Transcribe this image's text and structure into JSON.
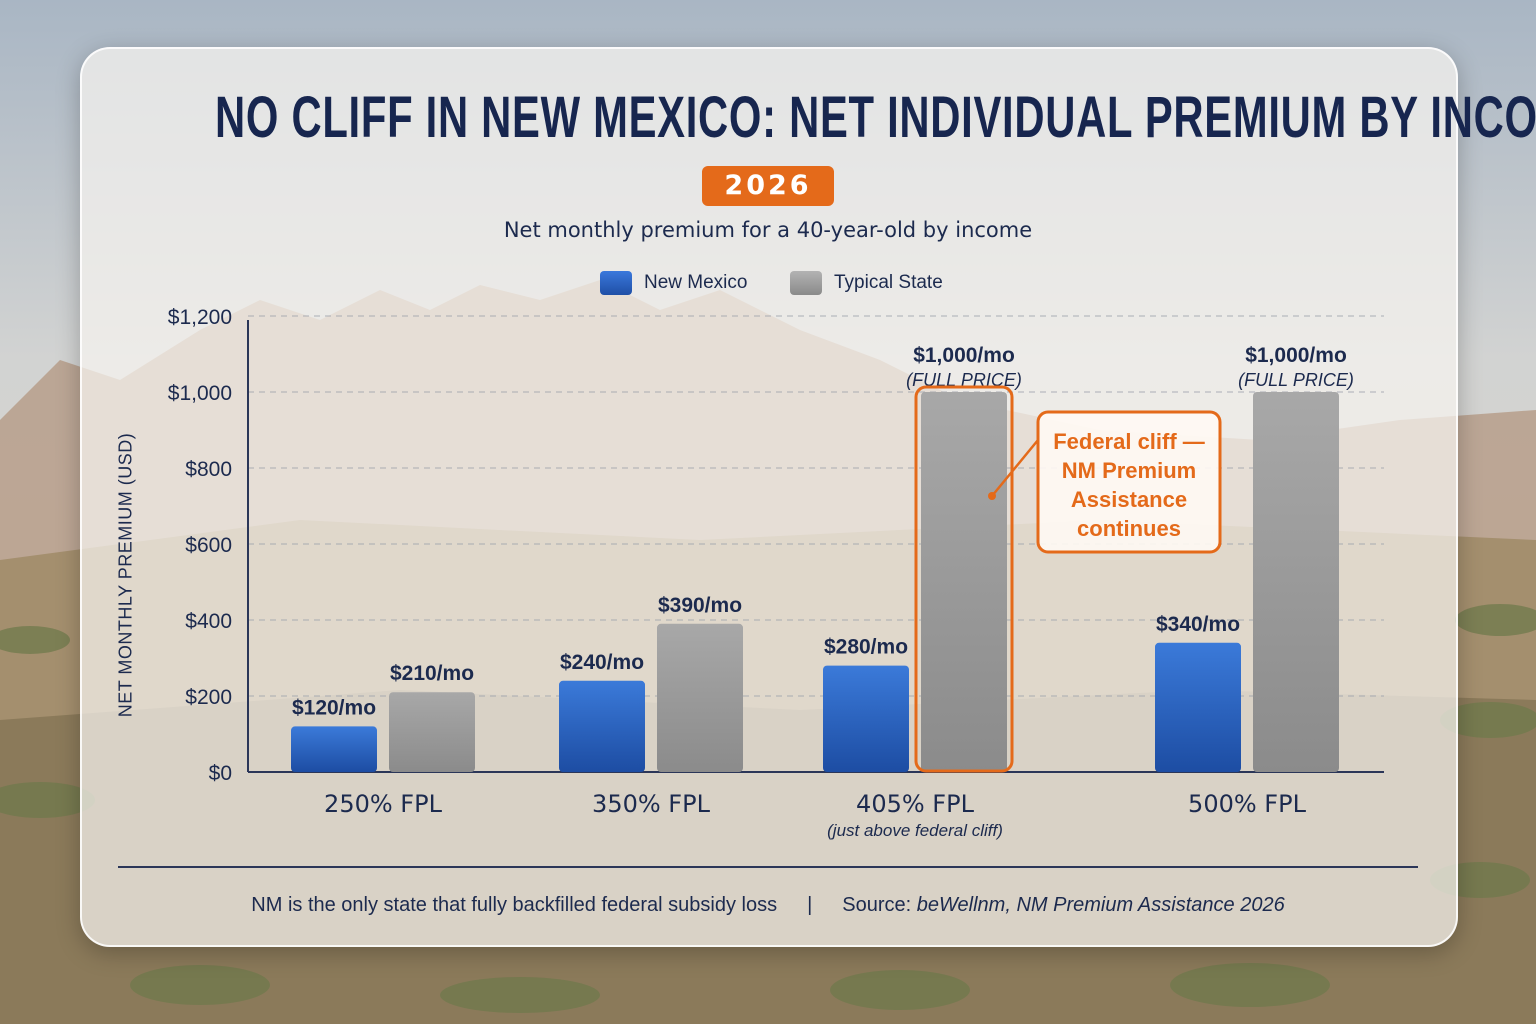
{
  "title": "NO CLIFF IN NEW MEXICO: NET INDIVIDUAL PREMIUM BY INCOME",
  "badge": "2026",
  "subtitle": "Net monthly premium for a 40-year-old by income",
  "legend": [
    {
      "name": "New Mexico",
      "color": "#2f66c9"
    },
    {
      "name": "Typical State",
      "color": "#9a9a9a"
    }
  ],
  "ylabel": "NET MONTHLY PREMIUM (USD)",
  "footer": {
    "note": "NM is the only state that fully backfilled federal subsidy loss",
    "separator": "|",
    "source_prefix": "Source: ",
    "source": "beWellnm, NM Premium Assistance 2026"
  },
  "colors": {
    "accent": "#e46a1a",
    "new_mexico": "#2f66c9",
    "typical_state": "#9a9a9a",
    "text": "#1c2a4e"
  },
  "chart_data": {
    "type": "bar",
    "categories": [
      "250% FPL",
      "350% FPL",
      "405% FPL",
      "500% FPL"
    ],
    "category_notes": [
      "",
      "",
      "(just above federal cliff)",
      ""
    ],
    "series": [
      {
        "name": "New Mexico",
        "values": [
          120,
          240,
          280,
          340
        ],
        "labels": [
          "$120/mo",
          "$240/mo",
          "$280/mo",
          "$340/mo"
        ]
      },
      {
        "name": "Typical State",
        "values": [
          210,
          390,
          1000,
          1000
        ],
        "labels": [
          "$210/mo",
          "$390/mo",
          "$1,000/mo",
          "$1,000/mo"
        ],
        "sublabels": [
          "",
          "",
          "(FULL PRICE)",
          "(FULL PRICE)"
        ]
      }
    ],
    "ylim": [
      0,
      1200
    ],
    "yticks": [
      0,
      200,
      400,
      600,
      800,
      1000,
      1200
    ],
    "ytick_labels": [
      "$0",
      "$200",
      "$400",
      "$600",
      "$800",
      "$1,000",
      "$1,200"
    ],
    "grid": true,
    "legend_position": "top-center",
    "annotation": {
      "lines": [
        "Federal cliff —",
        "NM Premium",
        "Assistance",
        "continues"
      ],
      "category": "405% FPL",
      "series": "Typical State"
    }
  }
}
